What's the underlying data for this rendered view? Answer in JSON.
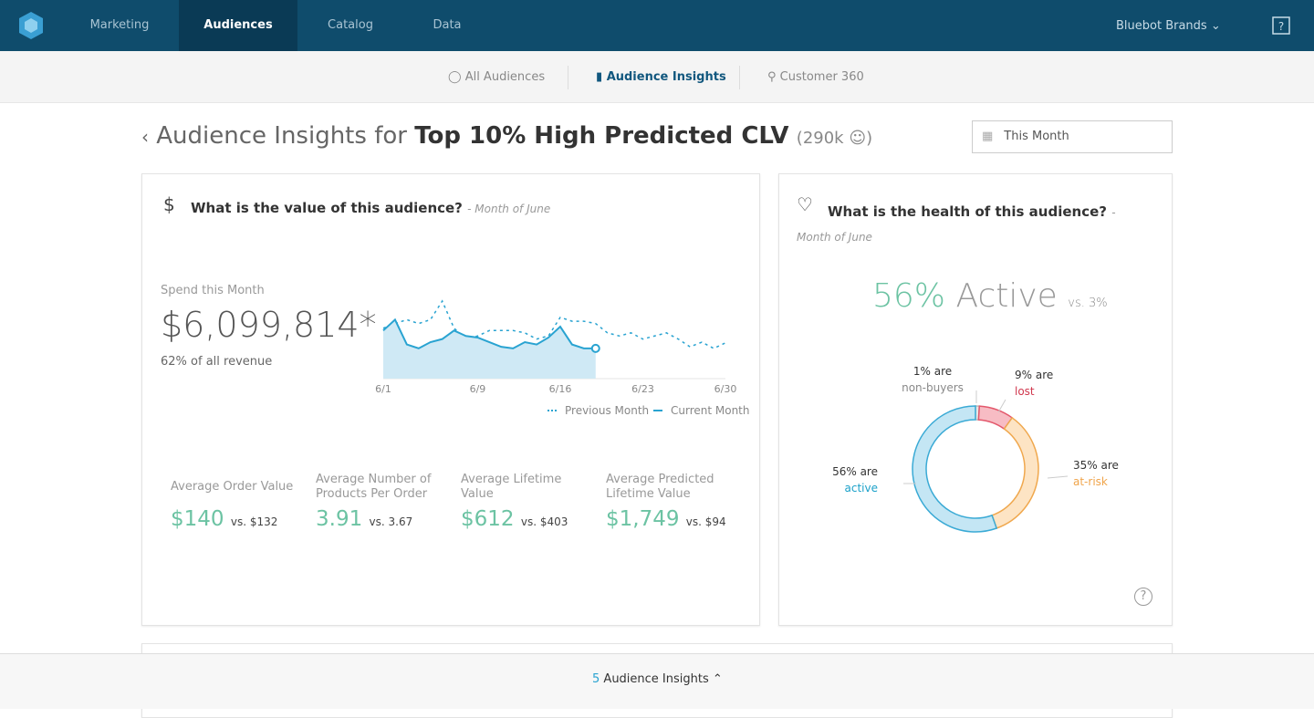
{
  "nav": {
    "tabs": [
      "Marketing",
      "Audiences",
      "Catalog",
      "Data"
    ],
    "active_tab": 1,
    "brand": "Bluebot Brands"
  },
  "subnav": {
    "items": [
      "All Audiences",
      "Audience Insights",
      "Customer 360"
    ],
    "active_item": 1
  },
  "header": {
    "prefix": "Audience Insights for",
    "audience": "Top 10% High Predicted CLV",
    "size": "(290k",
    "size_end": ")",
    "date_filter": "This Month"
  },
  "value_card": {
    "title": "What is the value of this audience?",
    "subtitle": "- Month of June",
    "spend_label": "Spend this Month",
    "spend_value": "$6,099,814*",
    "spend_note": "62% of all revenue",
    "chart": {
      "type": "line",
      "x": [
        1,
        2,
        3,
        4,
        5,
        6,
        7,
        8,
        9,
        10,
        11,
        12,
        13,
        14,
        15,
        16,
        17,
        18,
        19,
        20,
        21,
        22,
        23,
        24,
        25,
        26,
        27,
        28,
        29,
        30
      ],
      "series": [
        {
          "name": "Previous Month",
          "color": "#29a3d1",
          "dashed": true,
          "values": [
            65,
            71,
            76,
            71,
            76,
            100,
            65,
            51,
            55,
            62,
            62,
            62,
            59,
            51,
            55,
            79,
            74,
            74,
            71,
            59,
            55,
            59,
            51,
            55,
            59,
            51,
            41,
            47,
            39,
            46
          ]
        },
        {
          "name": "Current Month",
          "color": "#29a3d1",
          "fill": "#cfe9f5",
          "values": [
            62,
            76,
            44,
            39,
            47,
            51,
            62,
            55,
            53,
            47,
            41,
            39,
            47,
            44,
            53,
            67,
            44,
            39,
            39,
            null,
            null,
            null,
            null,
            null,
            null,
            null,
            null,
            null,
            null,
            null
          ]
        }
      ],
      "xlim": [
        1,
        30
      ],
      "xticks": [
        {
          "value": 1,
          "label": "6/1"
        },
        {
          "value": 9,
          "label": "6/9"
        },
        {
          "value": 16,
          "label": "6/16"
        },
        {
          "value": 23,
          "label": "6/23"
        },
        {
          "value": 30,
          "label": "6/30"
        }
      ],
      "ylim": [
        0,
        100
      ]
    },
    "kpis": [
      {
        "label": "Average Order Value",
        "value": "$140",
        "compare": "vs. $132"
      },
      {
        "label": "Average Number of Products Per Order",
        "value": "3.91",
        "compare": "vs. 3.67"
      },
      {
        "label": "Average Lifetime Value",
        "value": "$612",
        "compare": "vs. $403"
      },
      {
        "label": "Average Predicted Lifetime Value",
        "value": "$1,749",
        "compare": "vs. $94"
      }
    ]
  },
  "health_card": {
    "title": "What is the health of this audience?",
    "subtitle": "- Month of June",
    "headline_value": "56%",
    "headline_word": "Active",
    "headline_compare": "vs. 3%",
    "chart": {
      "type": "pie",
      "categories": [
        "non-buyers",
        "lost",
        "at-risk",
        "active"
      ],
      "values": [
        1,
        9,
        35,
        56
      ],
      "value_labels": [
        "1% are",
        "9% are",
        "35% are",
        "56% are"
      ],
      "colors": [
        "#e6e6e6",
        "#f7bcc4",
        "#fde4c4",
        "#c4e6f4"
      ],
      "stroke_colors": [
        "#bbbbbb",
        "#e3586c",
        "#f0a84e",
        "#3aaad5"
      ],
      "label_colors": [
        "#888888",
        "#d0374d",
        "#f0a44a",
        "#1ba1c9"
      ]
    }
  },
  "footer": {
    "count": "5",
    "label": "Audience Insights"
  }
}
